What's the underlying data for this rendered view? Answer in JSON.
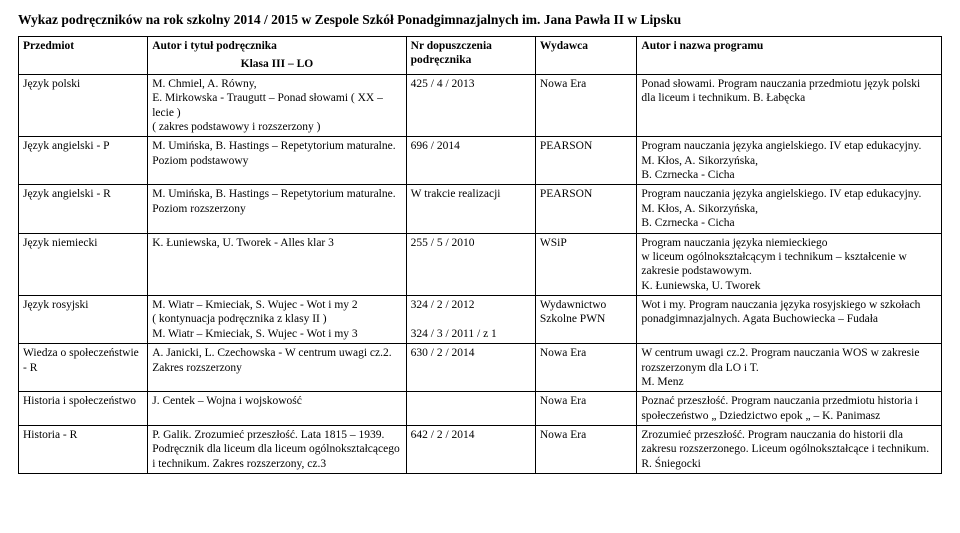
{
  "title": "Wykaz podręczników na rok szkolny 2014 / 2015 w Zespole Szkół Ponadgimnazjalnych im. Jana Pawła II w Lipsku",
  "klasa_label": "Klasa III – LO",
  "headers": {
    "subject": "Przedmiot",
    "author": "Autor i tytuł podręcznika",
    "nr": "Nr dopuszczenia podręcznika",
    "publisher": "Wydawca",
    "program": "Autor i nazwa programu"
  },
  "rows": [
    {
      "subject": "Język polski",
      "author": "M. Chmiel, A. Równy,\nE. Mirkowska - Traugutt – Ponad słowami ( XX – lecie )\n( zakres podstawowy i rozszerzony )",
      "nr": "425 / 4 / 2013",
      "publisher": "Nowa Era",
      "program": "Ponad słowami. Program nauczania przedmiotu język polski dla liceum i technikum. B. Łabęcka"
    },
    {
      "subject": "Język angielski  - P",
      "author": "M. Umińska, B. Hastings – Repetytorium maturalne. Poziom podstawowy",
      "nr": "696 / 2014",
      "publisher": "PEARSON",
      "program": "Program nauczania języka angielskiego. IV etap edukacyjny. M. Kłos, A. Sikorzyńska,\nB. Czrnecka - Cicha"
    },
    {
      "subject": "Język angielski - R",
      "author": "M. Umińska, B. Hastings – Repetytorium maturalne. Poziom rozszerzony",
      "nr": "W trakcie realizacji",
      "publisher": "PEARSON",
      "program": "Program nauczania języka angielskiego. IV etap edukacyjny. M. Kłos,  A. Sikorzyńska,\nB. Czrnecka - Cicha"
    },
    {
      "subject": "Język niemiecki",
      "author": "K. Łuniewska, U. Tworek - Alles klar 3",
      "nr": "255 / 5 / 2010",
      "publisher": "WSiP",
      "program": "Program nauczania języka niemieckiego\nw liceum ogólnokształcącym  i technikum – kształcenie  w zakresie podstawowym.\nK. Łuniewska,  U. Tworek"
    },
    {
      "subject": "Język rosyjski",
      "author": "M. Wiatr – Kmieciak, S. Wujec - Wot   i my 2\n( kontynuacja podręcznika   z klasy II )\nM. Wiatr – Kmieciak, S. Wujec - Wot   i my 3",
      "nr": "324 / 2 / 2012\n\n324 / 3 / 2011 / z 1",
      "publisher": "Wydawnictwo Szkolne PWN",
      "program": "Wot i my. Program nauczania języka rosyjskiego w szkołach ponadgimnazjalnych. Agata Buchowiecka – Fudała"
    },
    {
      "subject": "Wiedza o społeczeństwie\n- R",
      "author": "A. Janicki, L. Czechowska -  W centrum uwagi cz.2. Zakres rozszerzony",
      "nr": "630 / 2 / 2014",
      "publisher": "Nowa Era",
      "program": "W centrum uwagi cz.2. Program nauczania WOS w zakresie rozszerzonym dla LO i T.\nM. Menz"
    },
    {
      "subject": "Historia i społeczeństwo",
      "author": "J. Centek – Wojna i wojskowość",
      "nr": "",
      "publisher": "Nowa Era",
      "program": "Poznać przeszłość. Program nauczania przedmiotu historia i społeczeństwo           „ Dziedzictwo epok „ – K. Panimasz"
    },
    {
      "subject": "Historia - R",
      "author": "P. Galik. Zrozumieć przeszłość. Lata 1815 – 1939. Podręcznik dla liceum dla liceum ogólnokształcącego i technikum. Zakres rozszerzony, cz.3",
      "nr": "642 / 2 / 2014",
      "publisher": "Nowa Era",
      "program": "Zrozumieć przeszłość. Program nauczania do historii dla zakresu rozszerzonego. Liceum ogólnokształcące i technikum. R. Śniegocki"
    }
  ]
}
